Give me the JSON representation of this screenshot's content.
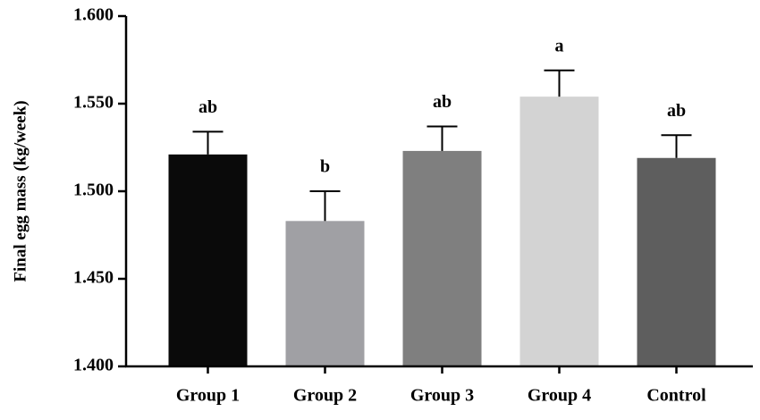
{
  "chart_data": {
    "type": "bar",
    "y_label": "Final egg mass (kg/week)",
    "categories": [
      "Group 1",
      "Group 2",
      "Group 3",
      "Group 4",
      "Control"
    ],
    "values": [
      1.521,
      1.483,
      1.523,
      1.554,
      1.519
    ],
    "errors": [
      0.013,
      0.017,
      0.014,
      0.015,
      0.013
    ],
    "value_labels": [
      "ab",
      "b",
      "ab",
      "a",
      "ab"
    ],
    "colors": [
      "#0a0a0a",
      "#a0a0a4",
      "#7f7f7f",
      "#d3d3d3",
      "#5e5e5e"
    ],
    "ylim": [
      1.4,
      1.6
    ],
    "yticks": [
      {
        "value": 1.4,
        "label": "1.400"
      },
      {
        "value": 1.45,
        "label": "1.450"
      },
      {
        "value": 1.5,
        "label": "1.500"
      },
      {
        "value": 1.55,
        "label": "1.550"
      },
      {
        "value": 1.6,
        "label": "1.600"
      }
    ],
    "grid": false
  }
}
